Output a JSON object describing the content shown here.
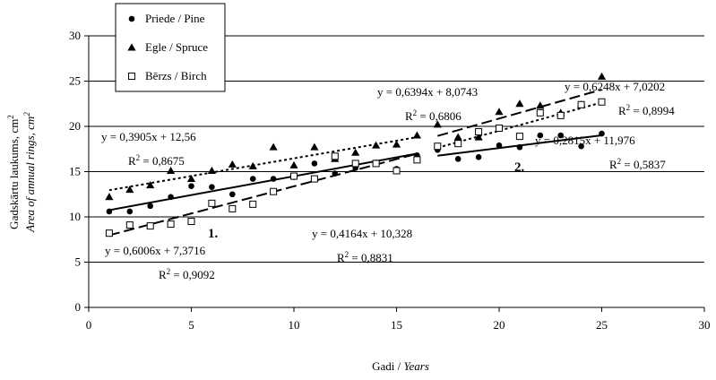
{
  "chart_data": {
    "type": "scatter",
    "title": "",
    "xlabel": "Gadi / ",
    "xlabel_italic": "Years",
    "ylabel": "Gadskārtu laukums, cm",
    "ylabel_sup": "2",
    "ylabel_italic": "Area of annual rings, cm",
    "ylabel_italic_sup": "2",
    "xlim": [
      0,
      30
    ],
    "ylim": [
      0,
      30
    ],
    "x_ticks": [
      0,
      5,
      10,
      15,
      20,
      25,
      30
    ],
    "y_ticks": [
      0,
      5,
      10,
      15,
      20,
      25,
      30
    ],
    "grid": "horizontal",
    "legend_position": "top-left",
    "series": [
      {
        "name": "Priede / Pine",
        "marker": "circle",
        "x": [
          1,
          2,
          3,
          4,
          5,
          6,
          7,
          8,
          9,
          10,
          11,
          12,
          13,
          14,
          15,
          16,
          17,
          18,
          19,
          20,
          21,
          22,
          23,
          24,
          25
        ],
        "y": [
          10.6,
          10.6,
          11.2,
          12.2,
          13.4,
          13.3,
          12.5,
          14.2,
          14.2,
          14.4,
          15.9,
          14.8,
          15.4,
          16.0,
          15.3,
          16.8,
          17.4,
          16.4,
          16.6,
          17.9,
          17.7,
          19.0,
          19.0,
          17.8,
          19.2
        ]
      },
      {
        "name": "Egle / Spruce",
        "marker": "triangle",
        "x": [
          1,
          2,
          3,
          4,
          5,
          6,
          7,
          8,
          9,
          10,
          11,
          12,
          13,
          14,
          15,
          16,
          17,
          18,
          19,
          20,
          21,
          22,
          23,
          24,
          25
        ],
        "y": [
          12.2,
          13.0,
          13.5,
          15.1,
          14.2,
          15.1,
          15.8,
          15.6,
          17.7,
          15.7,
          17.7,
          16.4,
          17.1,
          17.9,
          18.0,
          19.0,
          20.2,
          18.8,
          18.8,
          21.6,
          22.5,
          22.3,
          21.5,
          22.4,
          25.5
        ]
      },
      {
        "name": "Bērzs / Birch",
        "marker": "square-open",
        "x": [
          1,
          2,
          3,
          4,
          5,
          6,
          7,
          8,
          9,
          10,
          11,
          12,
          13,
          14,
          15,
          16,
          17,
          18,
          19,
          20,
          21,
          22,
          23,
          24,
          25
        ],
        "y": [
          8.2,
          9.1,
          9.0,
          9.2,
          9.5,
          11.5,
          10.9,
          11.4,
          12.8,
          14.5,
          14.2,
          16.7,
          15.9,
          15.9,
          15.1,
          16.3,
          17.8,
          18.1,
          19.4,
          19.8,
          18.9,
          21.5,
          21.2,
          22.4,
          22.7
        ]
      }
    ],
    "trendlines": [
      {
        "series": "Priede / Pine",
        "segment": "1",
        "style": "solid",
        "x_range": [
          1,
          16
        ],
        "slope": 0.4164,
        "intercept": 10.328,
        "equation": "y = 0,4164x + 10,328",
        "r2_label": "R",
        "r2_value": " = 0,8831"
      },
      {
        "series": "Priede / Pine",
        "segment": "2",
        "style": "solid",
        "x_range": [
          17,
          25
        ],
        "slope": 0.2815,
        "intercept": 11.976,
        "equation": "y = 0,2815x + 11,976",
        "r2_label": "R",
        "r2_value": " = 0,5837"
      },
      {
        "series": "Egle / Spruce",
        "segment": "1",
        "style": "dotted",
        "x_range": [
          1,
          16
        ],
        "slope": 0.3905,
        "intercept": 12.56,
        "equation": "y = 0,3905x + 12,56",
        "r2_label": "R",
        "r2_value": " = 0,8675"
      },
      {
        "series": "Egle / Spruce",
        "segment": "2",
        "style": "dotted",
        "x_range": [
          17,
          25
        ],
        "slope": 0.6248,
        "intercept": 7.0202,
        "equation": "y = 0,6248x + 7,0202",
        "r2_label": "R",
        "r2_value": " = 0,8994"
      },
      {
        "series": "Bērzs / Birch",
        "segment": "1",
        "style": "dashed",
        "x_range": [
          1,
          16
        ],
        "slope": 0.6006,
        "intercept": 7.3716,
        "equation": "y = 0,6006x + 7,3716",
        "r2_label": "R",
        "r2_value": " = 0,9092"
      },
      {
        "series": "Bērzs / Birch",
        "segment": "2",
        "style": "dashed",
        "x_range": [
          17,
          25
        ],
        "slope": 0.6394,
        "intercept": 8.0743,
        "equation": "y = 0,6394x + 8,0743",
        "r2_label": "R",
        "r2_value": " = 0,6806"
      }
    ],
    "r2_sup": "2",
    "segment_labels": [
      "1.",
      "2."
    ]
  }
}
